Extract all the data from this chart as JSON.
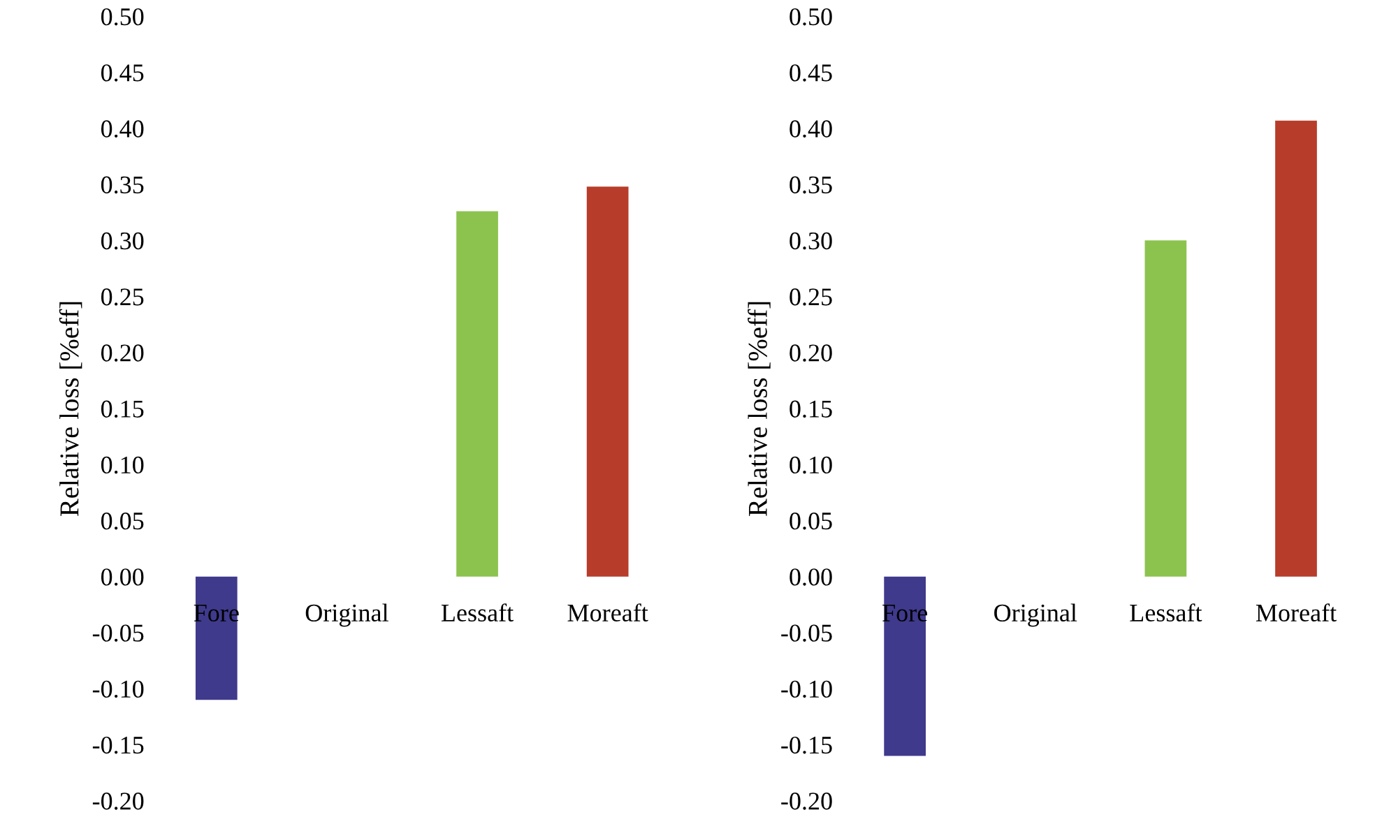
{
  "chart_data": [
    {
      "type": "bar",
      "ylabel": "Relative loss [%eff]",
      "categories": [
        "Fore",
        "Original",
        "Lessaft",
        "Moreaft"
      ],
      "values": [
        -0.11,
        0,
        0.326,
        0.348
      ],
      "colors": [
        "#3f3a8c",
        "#8cc34e",
        "#8cc34e",
        "#b83c2a"
      ],
      "ylim": [
        -0.2,
        0.5
      ],
      "yticks": [
        {
          "value": -0.2,
          "label": "-0.20"
        },
        {
          "value": -0.15,
          "label": "-0.15"
        },
        {
          "value": -0.1,
          "label": "-0.10"
        },
        {
          "value": -0.05,
          "label": "-0.05"
        },
        {
          "value": 0,
          "label": "0.00"
        },
        {
          "value": 0.05,
          "label": "0.05"
        },
        {
          "value": 0.1,
          "label": "0.10"
        },
        {
          "value": 0.15,
          "label": "0.15"
        },
        {
          "value": 0.2,
          "label": "0.20"
        },
        {
          "value": 0.25,
          "label": "0.25"
        },
        {
          "value": 0.3,
          "label": "0.30"
        },
        {
          "value": 0.35,
          "label": "0.35"
        },
        {
          "value": 0.4,
          "label": "0.40"
        },
        {
          "value": 0.45,
          "label": "0.45"
        },
        {
          "value": 0.5,
          "label": "0.50"
        }
      ]
    },
    {
      "type": "bar",
      "ylabel": "Relative loss [%eff]",
      "categories": [
        "Fore",
        "Original",
        "Lessaft",
        "Moreaft"
      ],
      "values": [
        -0.16,
        0,
        0.3,
        0.407
      ],
      "colors": [
        "#3f3a8c",
        "#8cc34e",
        "#8cc34e",
        "#b83c2a"
      ],
      "ylim": [
        -0.2,
        0.5
      ],
      "yticks": [
        {
          "value": -0.2,
          "label": "-0.20"
        },
        {
          "value": -0.15,
          "label": "-0.15"
        },
        {
          "value": -0.1,
          "label": "-0.10"
        },
        {
          "value": -0.05,
          "label": "-0.05"
        },
        {
          "value": 0,
          "label": "0.00"
        },
        {
          "value": 0.05,
          "label": "0.05"
        },
        {
          "value": 0.1,
          "label": "0.10"
        },
        {
          "value": 0.15,
          "label": "0.15"
        },
        {
          "value": 0.2,
          "label": "0.20"
        },
        {
          "value": 0.25,
          "label": "0.25"
        },
        {
          "value": 0.3,
          "label": "0.30"
        },
        {
          "value": 0.35,
          "label": "0.35"
        },
        {
          "value": 0.4,
          "label": "0.40"
        },
        {
          "value": 0.45,
          "label": "0.45"
        },
        {
          "value": 0.5,
          "label": "0.50"
        }
      ]
    }
  ]
}
